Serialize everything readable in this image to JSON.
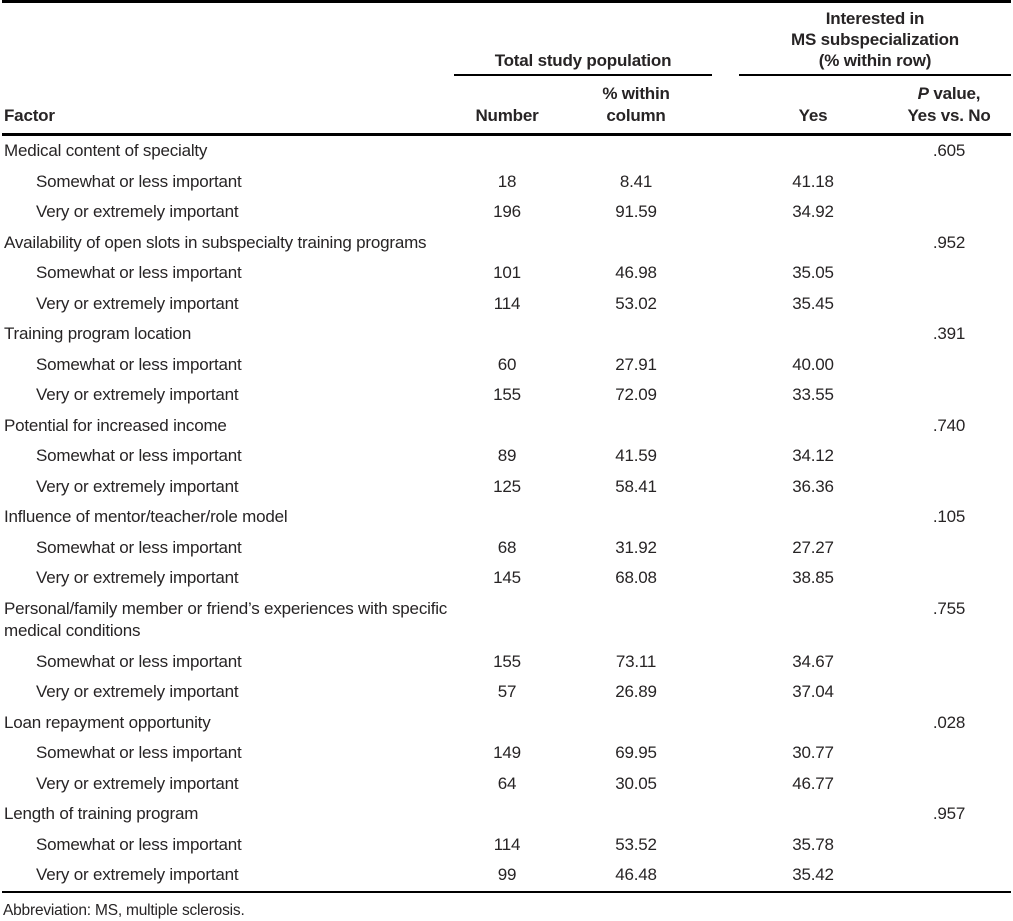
{
  "colors": {
    "rules": "#000000",
    "text": "#272425",
    "background": "#ffffff"
  },
  "table": {
    "header": {
      "factor": "Factor",
      "spanner_total": "Total study population",
      "spanner_ms": "Interested in\nMS subspecialization\n(% within row)",
      "number": "Number",
      "pct_within_column": "% within\ncolumn",
      "yes": "Yes",
      "p_value_italic": "P",
      "p_value_rest": " value,",
      "p_value_line2": "Yes vs. No"
    },
    "sections": [
      {
        "factor": "Medical content of specialty",
        "p_value": ".605",
        "rows": [
          {
            "label": "Somewhat or less important",
            "number": "18",
            "pct_within_column": "8.41",
            "yes": "41.18"
          },
          {
            "label": "Very or extremely important",
            "number": "196",
            "pct_within_column": "91.59",
            "yes": "34.92"
          }
        ]
      },
      {
        "factor": "Availability of open slots in subspecialty training programs",
        "p_value": ".952",
        "rows": [
          {
            "label": "Somewhat or less important",
            "number": "101",
            "pct_within_column": "46.98",
            "yes": "35.05"
          },
          {
            "label": "Very or extremely important",
            "number": "114",
            "pct_within_column": "53.02",
            "yes": "35.45"
          }
        ]
      },
      {
        "factor": "Training program location",
        "p_value": ".391",
        "rows": [
          {
            "label": "Somewhat or less important",
            "number": "60",
            "pct_within_column": "27.91",
            "yes": "40.00"
          },
          {
            "label": "Very or extremely important",
            "number": "155",
            "pct_within_column": "72.09",
            "yes": "33.55"
          }
        ]
      },
      {
        "factor": "Potential for increased income",
        "p_value": ".740",
        "rows": [
          {
            "label": "Somewhat or less important",
            "number": "89",
            "pct_within_column": "41.59",
            "yes": "34.12"
          },
          {
            "label": "Very or extremely important",
            "number": "125",
            "pct_within_column": "58.41",
            "yes": "36.36"
          }
        ]
      },
      {
        "factor": "Influence of mentor/teacher/role model",
        "p_value": ".105",
        "rows": [
          {
            "label": "Somewhat or less important",
            "number": "68",
            "pct_within_column": "31.92",
            "yes": "27.27"
          },
          {
            "label": "Very or extremely important",
            "number": "145",
            "pct_within_column": "68.08",
            "yes": "38.85"
          }
        ]
      },
      {
        "factor": "Personal/family member or friend’s experiences with specific\nmedical conditions",
        "p_value": ".755",
        "rows": [
          {
            "label": "Somewhat or less important",
            "number": "155",
            "pct_within_column": "73.11",
            "yes": "34.67"
          },
          {
            "label": "Very or extremely important",
            "number": "57",
            "pct_within_column": "26.89",
            "yes": "37.04"
          }
        ]
      },
      {
        "factor": "Loan repayment opportunity",
        "p_value": ".028",
        "rows": [
          {
            "label": "Somewhat or less important",
            "number": "149",
            "pct_within_column": "69.95",
            "yes": "30.77"
          },
          {
            "label": "Very or extremely important",
            "number": "64",
            "pct_within_column": "30.05",
            "yes": "46.77"
          }
        ]
      },
      {
        "factor": "Length of training program",
        "p_value": ".957",
        "rows": [
          {
            "label": "Somewhat or less important",
            "number": "114",
            "pct_within_column": "53.52",
            "yes": "35.78"
          },
          {
            "label": "Very or extremely important",
            "number": "99",
            "pct_within_column": "46.48",
            "yes": "35.42"
          }
        ]
      }
    ],
    "footnote": "Abbreviation: MS, multiple sclerosis."
  }
}
